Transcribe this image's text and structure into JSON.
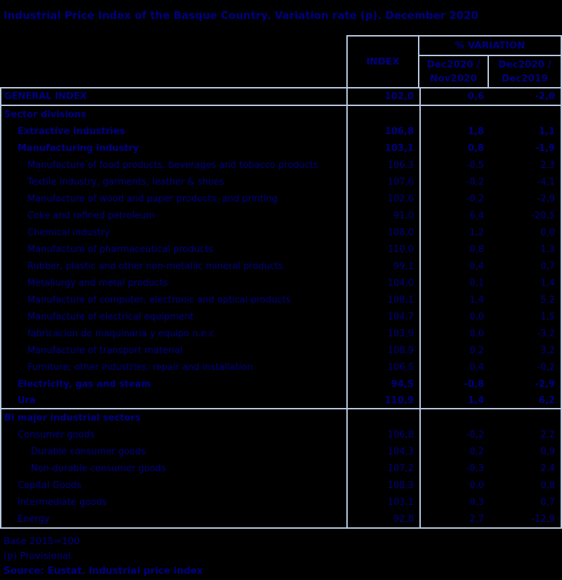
{
  "title": "Industrial Price Index of the Basque Country. Variation rate (p). December 2020",
  "colors": {
    "background": "#000000",
    "text": "#000080",
    "border": "#b8cce4"
  },
  "table": {
    "header": {
      "index_label": "INDEX",
      "variation_label": "% VARIATION",
      "col_nov": "Dec2020 /\nNov2020",
      "col_dec": "Dec2020 /\nDec2019"
    },
    "rows": [
      {
        "label": "GENERAL INDEX",
        "index": "102,0",
        "var_nov": "0,6",
        "var_dec": "-2,0"
      },
      {
        "label": "Sector divisions",
        "index": "",
        "var_nov": "",
        "var_dec": ""
      },
      {
        "label": "Extractive Industries",
        "index": "106,8",
        "var_nov": "1,8",
        "var_dec": "1,1"
      },
      {
        "label": "Manufacturing industry",
        "index": "103,1",
        "var_nov": "0,8",
        "var_dec": "-1,9"
      },
      {
        "label": "Manufacture of food products, beverages and tobacco products",
        "index": "106,3",
        "var_nov": "-0,5",
        "var_dec": "2,3"
      },
      {
        "label": "Textile industry, garments, leather & shoes",
        "index": "107,6",
        "var_nov": "-0,2",
        "var_dec": "-4,1"
      },
      {
        "label": "Manufacture of wood and paper products, and printing",
        "index": "102,6",
        "var_nov": "-0,2",
        "var_dec": "-2,9"
      },
      {
        "label": "Coke and refined petroleum",
        "index": "91,0",
        "var_nov": "6,4",
        "var_dec": "-20,5"
      },
      {
        "label": "Chemical industry",
        "index": "108,0",
        "var_nov": "1,2",
        "var_dec": "0,0"
      },
      {
        "label": "Manufacture of pharmaceutical products",
        "index": "110,0",
        "var_nov": "0,8",
        "var_dec": "1,3"
      },
      {
        "label": "Rubber, plastic and other non-metallic mineral products",
        "index": "99,1",
        "var_nov": "0,4",
        "var_dec": "0,7"
      },
      {
        "label": "Metallurgy and metal products",
        "index": "104,0",
        "var_nov": "0,1",
        "var_dec": "1,4"
      },
      {
        "label": "Manufacture of computer, electronic and optical products",
        "index": "108,1",
        "var_nov": "1,4",
        "var_dec": "5,2"
      },
      {
        "label": "Manufacture of electrical equipment",
        "index": "104,7",
        "var_nov": "0,0",
        "var_dec": "1,5"
      },
      {
        "label": "fabricacion de maquinaria y equipo n.e.c",
        "index": "103,9",
        "var_nov": "0,0",
        "var_dec": "-3,2"
      },
      {
        "label": "Manufacture of transport material",
        "index": "108,9",
        "var_nov": "0,2",
        "var_dec": "3,2"
      },
      {
        "label": "Furniture; other industries; repair and installation",
        "index": "106,5",
        "var_nov": "0,4",
        "var_dec": "-0,2"
      },
      {
        "label": "Electricity, gas and steam",
        "index": "94,5",
        "var_nov": "-0,8",
        "var_dec": "-2,9"
      },
      {
        "label": "Ura",
        "index": "110,9",
        "var_nov": "1,4",
        "var_dec": "6,2"
      },
      {
        "label": "Bi major industrial sectors",
        "index": "",
        "var_nov": "",
        "var_dec": ""
      },
      {
        "label": "Consumer goods",
        "index": "106,8",
        "var_nov": "-0,2",
        "var_dec": "2,2"
      },
      {
        "label": "Durable consumer goods",
        "index": "104,3",
        "var_nov": "0,2",
        "var_dec": "0,9"
      },
      {
        "label": "Non-durable consumer goods",
        "index": "107,2",
        "var_nov": "-0,3",
        "var_dec": "2,4"
      },
      {
        "label": "Capital Goods",
        "index": "108,3",
        "var_nov": "0,0",
        "var_dec": "0,8"
      },
      {
        "label": "Intermediate goods",
        "index": "103,1",
        "var_nov": "0,3",
        "var_dec": "0,7"
      },
      {
        "label": "Energy",
        "index": "92,8",
        "var_nov": "2,7",
        "var_dec": "-12,9"
      }
    ]
  },
  "footer": {
    "base": "Base 2015=100",
    "provisional": "(p) Provisional",
    "source": "Source: Eustat. Industrial price index"
  }
}
